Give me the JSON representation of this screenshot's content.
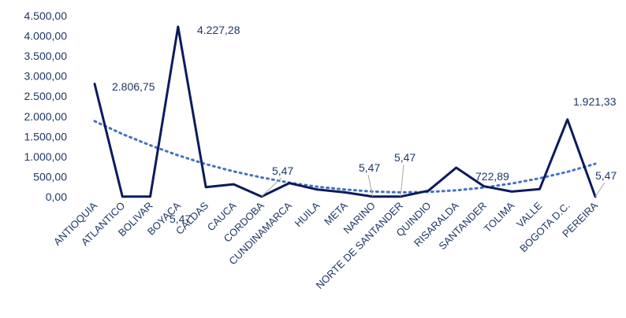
{
  "chart_data": {
    "type": "line",
    "title": "",
    "xlabel": "",
    "ylabel": "",
    "categories": [
      "ANTIOQUIA",
      "ATLANTICO",
      "BOLIVAR",
      "BOYACA",
      "CALDAS",
      "CAUCA",
      "CORDOBA",
      "CUNDINAMARCA",
      "HUILA",
      "META",
      "NARINO",
      "NORTE DE SANTANDER",
      "QUINDIO",
      "RISARALDA",
      "SANTANDER",
      "TOLIMA",
      "VALLE",
      "BOGOTA D.C.",
      "PEREIRA"
    ],
    "series": [
      {
        "values": [
          2806.75,
          5.47,
          5.47,
          4227.28,
          240,
          310,
          5.47,
          340,
          180,
          110,
          5.47,
          5.47,
          150,
          722.89,
          260,
          130,
          190,
          1921.33,
          5.47
        ],
        "color": "#0d1b5c"
      }
    ],
    "trendline": {
      "style": "dotted",
      "color": "#4472c4",
      "values": [
        1880,
        1560,
        1280,
        1030,
        810,
        630,
        480,
        350,
        250,
        180,
        130,
        110,
        120,
        160,
        230,
        330,
        460,
        620,
        820
      ]
    },
    "data_labels": [
      {
        "category_index": 0,
        "text": "2.806,75"
      },
      {
        "category_index": 3,
        "text": "4.227,28"
      },
      {
        "category_index": 2,
        "text": "5,47"
      },
      {
        "category_index": 6,
        "text": "5,47"
      },
      {
        "category_index": 10,
        "text": "5,47"
      },
      {
        "category_index": 11,
        "text": "5,47"
      },
      {
        "category_index": 13,
        "text": "722,89"
      },
      {
        "category_index": 17,
        "text": "1.921,33"
      },
      {
        "category_index": 18,
        "text": "5,47"
      }
    ],
    "y_ticks": [
      "0,00",
      "500,00",
      "1.000,00",
      "1.500,00",
      "2.000,00",
      "2.500,00",
      "3.000,00",
      "3.500,00",
      "4.000,00",
      "4.500,00"
    ],
    "ylim": [
      0,
      4500
    ],
    "grid": false,
    "legend": "none"
  }
}
